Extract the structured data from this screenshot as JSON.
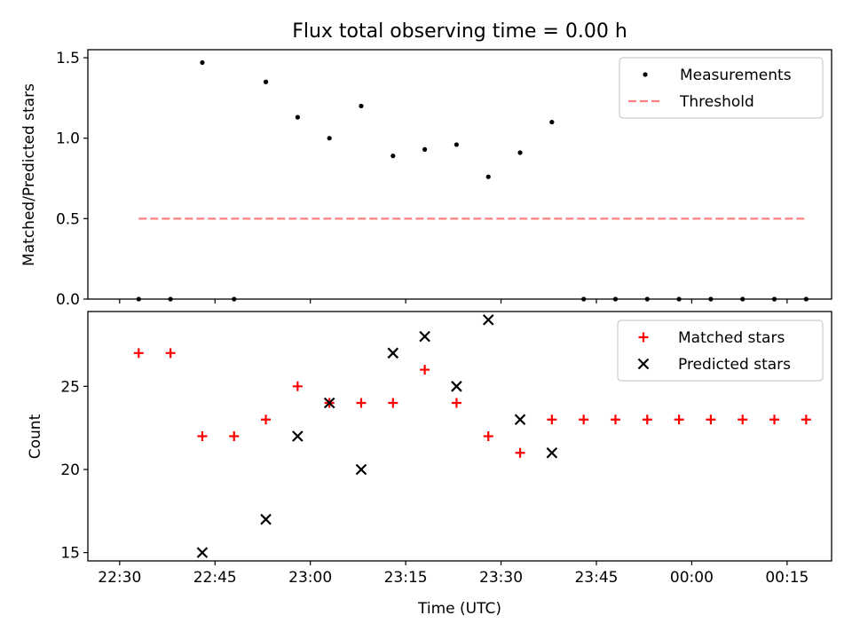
{
  "chart_data": [
    {
      "type": "scatter",
      "title": "Flux total observing time = 0.00 h",
      "xlabel": "",
      "ylabel": "Matched/Predicted stars",
      "ylim": [
        0,
        1.55
      ],
      "yticks": [
        0.0,
        0.5,
        1.0,
        1.5
      ],
      "ytick_labels": [
        "0.0",
        "0.5",
        "1.0",
        "1.5"
      ],
      "legend_position": "top-right",
      "grid": false,
      "series": [
        {
          "name": "Measurements",
          "kind": "scatter",
          "marker": "dot",
          "color": "#000000",
          "x": [
            "22:33",
            "22:38",
            "22:43",
            "22:48",
            "22:53",
            "22:58",
            "23:03",
            "23:08",
            "23:13",
            "23:18",
            "23:23",
            "23:28",
            "23:33",
            "23:38",
            "23:43",
            "23:48",
            "23:53",
            "23:58",
            "00:03",
            "00:08",
            "00:13",
            "00:18"
          ],
          "y": [
            0,
            0,
            1.47,
            0,
            1.35,
            1.13,
            1.0,
            1.2,
            0.89,
            0.93,
            0.96,
            0.76,
            0.91,
            1.1,
            0,
            0,
            0,
            0,
            0,
            0,
            0,
            0
          ]
        },
        {
          "name": "Threshold",
          "kind": "line",
          "dash": "dashed",
          "color": "#ff7f7f",
          "x": [
            "22:33",
            "00:18"
          ],
          "y": [
            0.5,
            0.5
          ]
        }
      ]
    },
    {
      "type": "scatter",
      "title": "",
      "xlabel": "Time (UTC)",
      "ylabel": "Count",
      "ylim": [
        14.5,
        29.5
      ],
      "yticks": [
        15,
        20,
        25
      ],
      "ytick_labels": [
        "15",
        "20",
        "25"
      ],
      "xlim": [
        "22:25",
        "00:22"
      ],
      "xticks": [
        "22:30",
        "22:45",
        "23:00",
        "23:15",
        "23:30",
        "23:45",
        "00:00",
        "00:15"
      ],
      "legend_position": "top-right",
      "grid": false,
      "series": [
        {
          "name": "Matched stars",
          "kind": "scatter",
          "marker": "plus",
          "color": "#ff0000",
          "x": [
            "22:33",
            "22:38",
            "22:43",
            "22:48",
            "22:53",
            "22:58",
            "23:03",
            "23:08",
            "23:13",
            "23:18",
            "23:23",
            "23:28",
            "23:33",
            "23:38",
            "23:43",
            "23:48",
            "23:53",
            "23:58",
            "00:03",
            "00:08",
            "00:13",
            "00:18"
          ],
          "y": [
            27,
            27,
            22,
            22,
            23,
            25,
            24,
            24,
            24,
            26,
            24,
            22,
            21,
            23,
            23,
            23,
            23,
            23,
            23,
            23,
            23,
            23
          ]
        },
        {
          "name": "Predicted stars",
          "kind": "scatter",
          "marker": "x",
          "color": "#000000",
          "x": [
            "22:43",
            "22:53",
            "22:58",
            "23:03",
            "23:08",
            "23:13",
            "23:18",
            "23:23",
            "23:28",
            "23:33",
            "23:38"
          ],
          "y": [
            15,
            17,
            22,
            24,
            20,
            27,
            28,
            25,
            29,
            23,
            21
          ]
        }
      ]
    }
  ]
}
